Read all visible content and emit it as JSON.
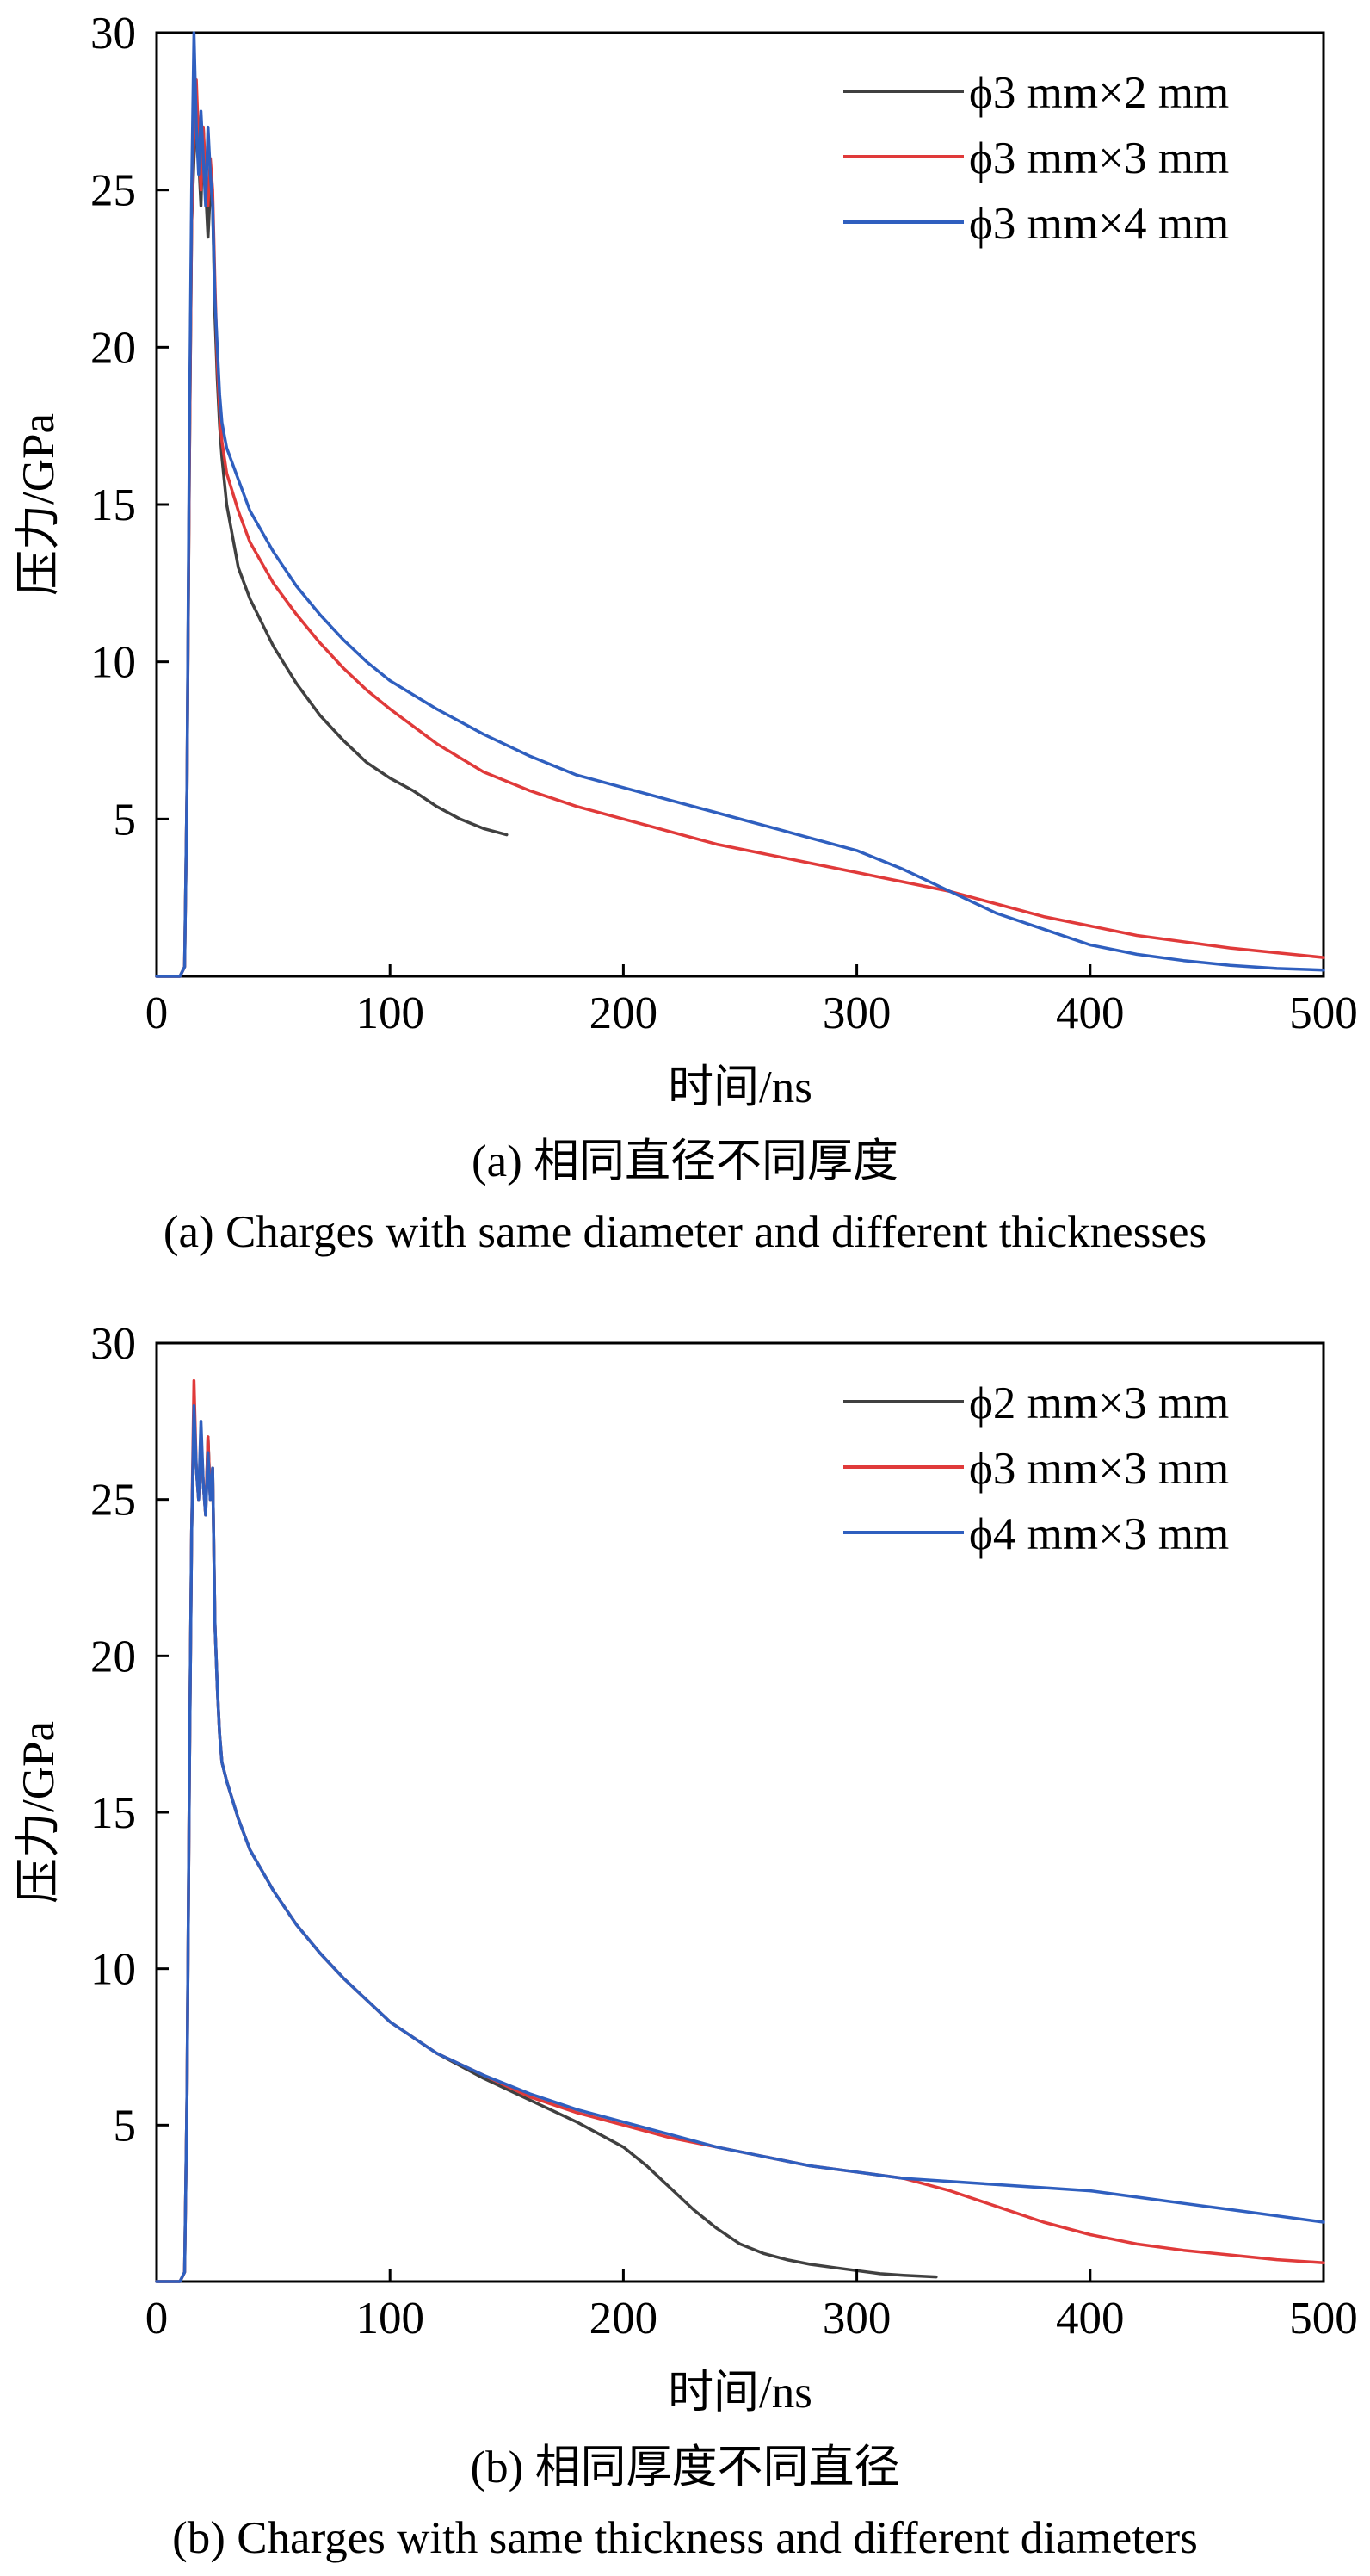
{
  "chart_data": [
    {
      "type": "line",
      "panel": "a",
      "caption_zh": "(a) 相同直径不同厚度",
      "caption_en": "(a) Charges with same diameter and different thicknesses",
      "xlabel": "时间/ns",
      "ylabel": "压力/GPa",
      "xlim": [
        0,
        500
      ],
      "ylim": [
        0,
        30
      ],
      "xticks": [
        "0",
        "100",
        "200",
        "300",
        "400",
        "500"
      ],
      "yticks": [
        "5",
        "10",
        "15",
        "20",
        "25",
        "30"
      ],
      "ytick_values": [
        5,
        10,
        15,
        20,
        25,
        30
      ],
      "xtick_values": [
        0,
        100,
        200,
        300,
        400,
        500
      ],
      "grid": false,
      "legend_position": "top-right",
      "series": [
        {
          "name": "ϕ3 mm×2 mm",
          "color": "#404040",
          "x": [
            0,
            8,
            10,
            12,
            13,
            14,
            15,
            16,
            17,
            18,
            19,
            20,
            21,
            22,
            23,
            24,
            25,
            26,
            27,
            28,
            30,
            35,
            40,
            50,
            60,
            70,
            80,
            90,
            100,
            110,
            120,
            130,
            140,
            150
          ],
          "y": [
            0,
            0,
            0,
            0.3,
            6,
            16,
            24,
            26,
            27.5,
            26,
            24.5,
            27,
            25,
            23.5,
            25,
            24.5,
            21,
            19,
            17.5,
            16.5,
            15,
            13,
            12,
            10.5,
            9.3,
            8.3,
            7.5,
            6.8,
            6.3,
            5.9,
            5.4,
            5.0,
            4.7,
            4.5
          ]
        },
        {
          "name": "ϕ3 mm×3 mm",
          "color": "#e03a3a",
          "x": [
            0,
            8,
            10,
            12,
            13,
            14,
            15,
            16,
            17,
            18,
            19,
            20,
            21,
            22,
            23,
            24,
            25,
            26,
            27,
            28,
            30,
            35,
            40,
            50,
            60,
            70,
            80,
            90,
            100,
            120,
            140,
            160,
            180,
            200,
            220,
            240,
            260,
            280,
            300,
            320,
            340,
            360,
            380,
            400,
            420,
            440,
            460,
            480,
            500
          ],
          "y": [
            0,
            0,
            0,
            0.3,
            6,
            16,
            24,
            27,
            28.5,
            26.5,
            25,
            27,
            25.5,
            24.5,
            26,
            25,
            22,
            19.5,
            18,
            17,
            16,
            14.8,
            13.8,
            12.5,
            11.5,
            10.6,
            9.8,
            9.1,
            8.5,
            7.4,
            6.5,
            5.9,
            5.4,
            5.0,
            4.6,
            4.2,
            3.9,
            3.6,
            3.3,
            3.0,
            2.7,
            2.3,
            1.9,
            1.6,
            1.3,
            1.1,
            0.9,
            0.75,
            0.6
          ]
        },
        {
          "name": "ϕ3 mm×4 mm",
          "color": "#2f5fbf",
          "x": [
            0,
            8,
            10,
            12,
            13,
            14,
            15,
            16,
            17,
            18,
            19,
            20,
            21,
            22,
            23,
            24,
            25,
            26,
            27,
            28,
            30,
            35,
            40,
            50,
            60,
            70,
            80,
            90,
            100,
            120,
            140,
            160,
            180,
            200,
            220,
            240,
            260,
            280,
            300,
            320,
            340,
            360,
            380,
            400,
            420,
            440,
            460,
            480,
            500
          ],
          "y": [
            0,
            0,
            0,
            0.3,
            6,
            17,
            25,
            30,
            27,
            25.5,
            27.5,
            26,
            24.5,
            27,
            25.5,
            24.5,
            21.5,
            20,
            18.5,
            17.6,
            16.8,
            15.8,
            14.8,
            13.5,
            12.4,
            11.5,
            10.7,
            10.0,
            9.4,
            8.5,
            7.7,
            7.0,
            6.4,
            6.0,
            5.6,
            5.2,
            4.8,
            4.4,
            4.0,
            3.4,
            2.7,
            2.0,
            1.5,
            1.0,
            0.7,
            0.5,
            0.35,
            0.25,
            0.2
          ]
        }
      ]
    },
    {
      "type": "line",
      "panel": "b",
      "caption_zh": "(b) 相同厚度不同直径",
      "caption_en": "(b) Charges with same thickness and different diameters",
      "xlabel": "时间/ns",
      "ylabel": "压力/GPa",
      "xlim": [
        0,
        500
      ],
      "ylim": [
        0,
        30
      ],
      "xticks": [
        "0",
        "100",
        "200",
        "300",
        "400",
        "500"
      ],
      "yticks": [
        "5",
        "10",
        "15",
        "20",
        "25",
        "30"
      ],
      "ytick_values": [
        5,
        10,
        15,
        20,
        25,
        30
      ],
      "xtick_values": [
        0,
        100,
        200,
        300,
        400,
        500
      ],
      "grid": false,
      "legend_position": "top-right",
      "series": [
        {
          "name": "ϕ2 mm×3 mm",
          "color": "#404040",
          "x": [
            0,
            8,
            10,
            12,
            13,
            14,
            15,
            16,
            17,
            18,
            19,
            20,
            21,
            22,
            23,
            24,
            25,
            26,
            27,
            28,
            30,
            35,
            40,
            50,
            60,
            70,
            80,
            90,
            100,
            120,
            140,
            160,
            180,
            200,
            210,
            220,
            230,
            240,
            250,
            260,
            270,
            280,
            290,
            300,
            310,
            320,
            334
          ],
          "y": [
            0,
            0,
            0,
            0.3,
            6,
            16,
            24,
            27.5,
            26,
            25,
            27,
            25.5,
            24.5,
            27,
            25,
            26,
            21,
            19,
            17.5,
            16.6,
            16.0,
            14.8,
            13.8,
            12.5,
            11.4,
            10.5,
            9.7,
            9.0,
            8.3,
            7.3,
            6.5,
            5.8,
            5.1,
            4.3,
            3.7,
            3.0,
            2.3,
            1.7,
            1.2,
            0.9,
            0.7,
            0.55,
            0.45,
            0.35,
            0.25,
            0.2,
            0.15
          ]
        },
        {
          "name": "ϕ3 mm×3 mm",
          "color": "#e03a3a",
          "x": [
            0,
            8,
            10,
            12,
            13,
            14,
            15,
            16,
            17,
            18,
            19,
            20,
            21,
            22,
            23,
            24,
            25,
            26,
            27,
            28,
            30,
            35,
            40,
            50,
            60,
            70,
            80,
            90,
            100,
            120,
            140,
            160,
            180,
            200,
            220,
            240,
            260,
            280,
            300,
            320,
            340,
            360,
            380,
            400,
            420,
            440,
            460,
            480,
            500
          ],
          "y": [
            0,
            0,
            0,
            0.3,
            6,
            16,
            24,
            28.8,
            26,
            25,
            27,
            25.5,
            24.5,
            27,
            25,
            26,
            21,
            19,
            17.5,
            16.6,
            16.0,
            14.8,
            13.8,
            12.5,
            11.4,
            10.5,
            9.7,
            9.0,
            8.3,
            7.3,
            6.6,
            5.9,
            5.4,
            5.0,
            4.6,
            4.3,
            4.0,
            3.7,
            3.5,
            3.3,
            2.9,
            2.4,
            1.9,
            1.5,
            1.2,
            1.0,
            0.85,
            0.7,
            0.6
          ]
        },
        {
          "name": "ϕ4 mm×3 mm",
          "color": "#2f5fbf",
          "x": [
            0,
            8,
            10,
            12,
            13,
            14,
            15,
            16,
            17,
            18,
            19,
            20,
            21,
            22,
            23,
            24,
            25,
            26,
            27,
            28,
            30,
            35,
            40,
            50,
            60,
            70,
            80,
            90,
            100,
            120,
            140,
            160,
            180,
            200,
            220,
            240,
            260,
            280,
            300,
            320,
            340,
            360,
            380,
            400,
            420,
            440,
            460,
            480,
            500
          ],
          "y": [
            0,
            0,
            0,
            0.3,
            6,
            16,
            24,
            28,
            26,
            25,
            27.5,
            25.5,
            24.5,
            26.5,
            25,
            26,
            21,
            19,
            17.5,
            16.6,
            16.0,
            14.8,
            13.8,
            12.5,
            11.4,
            10.5,
            9.7,
            9.0,
            8.3,
            7.3,
            6.6,
            6.0,
            5.5,
            5.1,
            4.7,
            4.3,
            4.0,
            3.7,
            3.5,
            3.3,
            3.2,
            3.1,
            3.0,
            2.9,
            2.7,
            2.5,
            2.3,
            2.1,
            1.9
          ]
        }
      ]
    }
  ]
}
